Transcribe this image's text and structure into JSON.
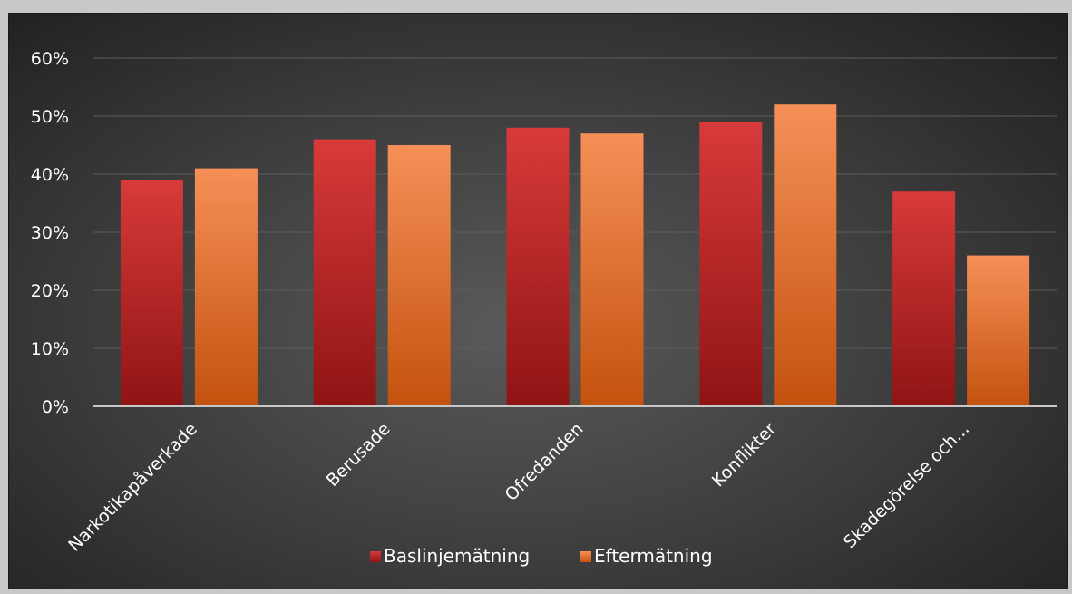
{
  "chart_data": {
    "type": "bar",
    "categories": [
      "Narkotikapåverkade",
      "Berusade",
      "Ofredanden",
      "Konflikter",
      "Skadegörelse och..."
    ],
    "series": [
      {
        "name": "Baslinjemätning",
        "values": [
          39,
          46,
          48,
          49,
          37
        ],
        "color_top": "#d83a3a",
        "color_bottom": "#8f1414"
      },
      {
        "name": "Eftermätning",
        "values": [
          41,
          45,
          47,
          52,
          26
        ],
        "color_top": "#f69058",
        "color_bottom": "#c3520e"
      }
    ],
    "ylim": [
      0,
      60
    ],
    "yticks": [
      "0%",
      "10%",
      "20%",
      "30%",
      "40%",
      "50%",
      "60%"
    ],
    "ytick_values": [
      0,
      10,
      20,
      30,
      40,
      50,
      60
    ],
    "legend_position": "bottom-center",
    "grid": true,
    "colors": {
      "text": "#ffffff",
      "grid": "#5c5c5c",
      "axis": "#c8c8c8"
    }
  }
}
